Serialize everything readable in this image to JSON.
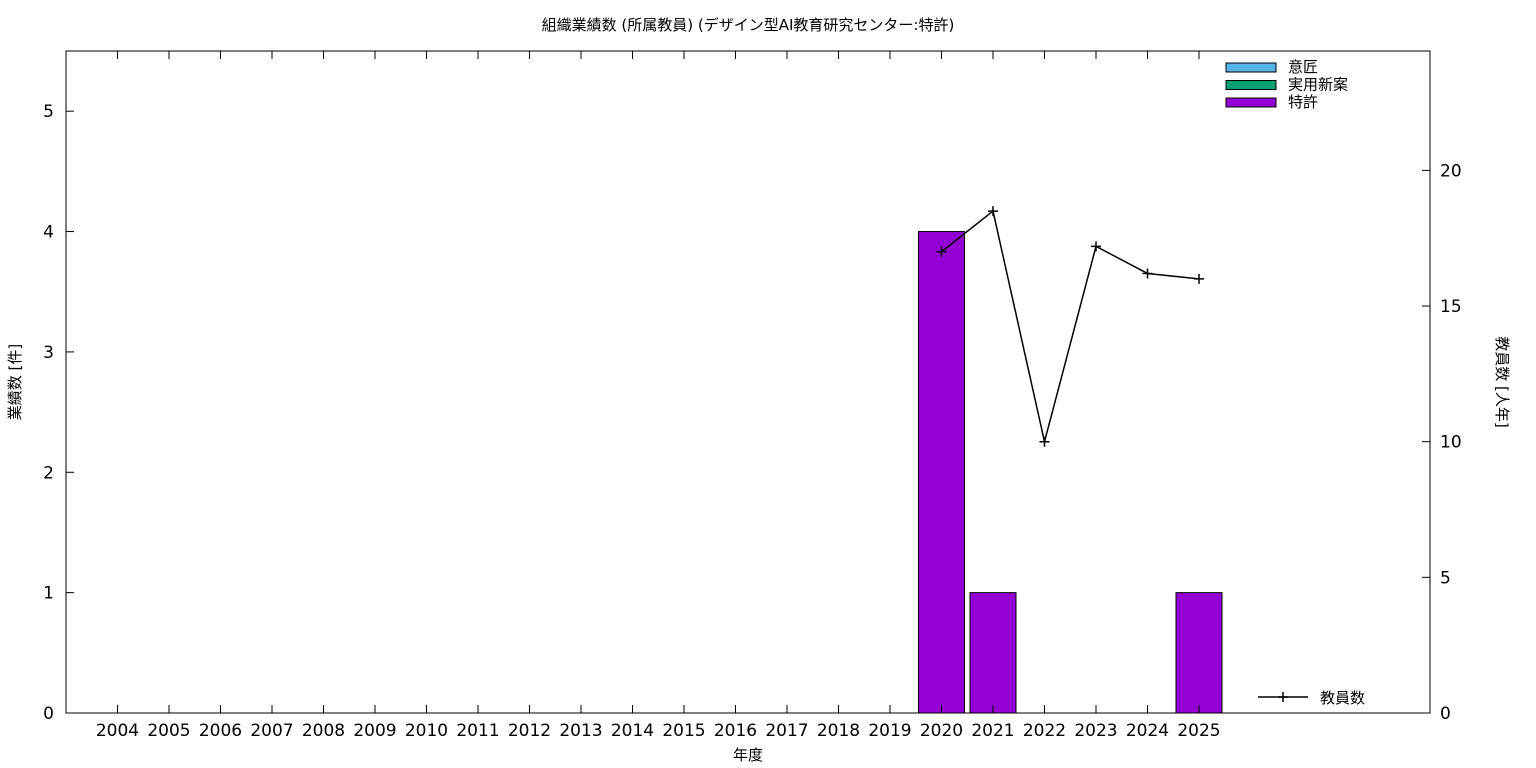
{
  "chart_data": {
    "type": "bar",
    "title": "組織業績数 (所属教員) (デザイン型AI教育研究センター:特許)",
    "xlabel": "年度",
    "ylabel": "業績数 [件]",
    "y2label": "教員数 [人年]",
    "categories": [
      "2004",
      "2005",
      "2006",
      "2007",
      "2008",
      "2009",
      "2010",
      "2011",
      "2012",
      "2013",
      "2014",
      "2015",
      "2016",
      "2017",
      "2018",
      "2019",
      "2020",
      "2021",
      "2022",
      "2023",
      "2024",
      "2025"
    ],
    "ylim": [
      0,
      5.5
    ],
    "y2lim": [
      0,
      24.4
    ],
    "yticks": [
      0,
      1,
      2,
      3,
      4,
      5
    ],
    "y2ticks": [
      0,
      5,
      10,
      15,
      20
    ],
    "legend_position": "top-right",
    "series": [
      {
        "name": "意匠",
        "color": "#56b4e9",
        "values": [
          0,
          0,
          0,
          0,
          0,
          0,
          0,
          0,
          0,
          0,
          0,
          0,
          0,
          0,
          0,
          0,
          0,
          0,
          0,
          0,
          0,
          0
        ]
      },
      {
        "name": "実用新案",
        "color": "#009e73",
        "values": [
          0,
          0,
          0,
          0,
          0,
          0,
          0,
          0,
          0,
          0,
          0,
          0,
          0,
          0,
          0,
          0,
          0,
          0,
          0,
          0,
          0,
          0
        ]
      },
      {
        "name": "特許",
        "color": "#9400d3",
        "values": [
          0,
          0,
          0,
          0,
          0,
          0,
          0,
          0,
          0,
          0,
          0,
          0,
          0,
          0,
          0,
          0,
          4,
          1,
          0,
          0,
          0,
          1
        ]
      }
    ],
    "line_series": {
      "name": "教員数",
      "axis": "right",
      "color": "#000000",
      "x": [
        "2020",
        "2021",
        "2022",
        "2023",
        "2024",
        "2025"
      ],
      "values": [
        17.0,
        18.5,
        10.0,
        17.2,
        16.2,
        16.0
      ]
    }
  }
}
